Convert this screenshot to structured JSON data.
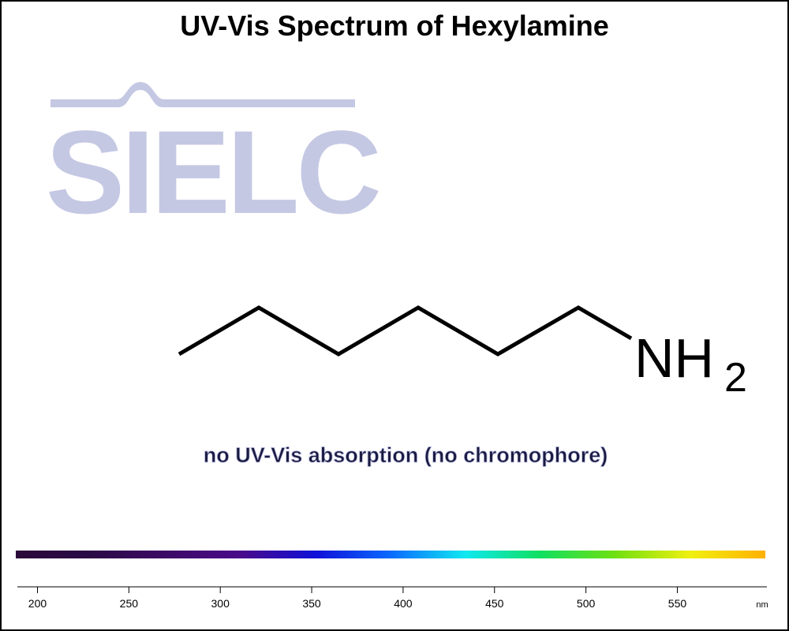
{
  "chart_data": {
    "type": "spectrum",
    "title": "UV-Vis Spectrum of Hexylamine",
    "watermark": "SIELC",
    "structure_label": {
      "main": "NH",
      "subscript": "2"
    },
    "annotation": "no UV-Vis absorption (no chromophore)",
    "xlabel": "nm",
    "xlim": [
      189,
      599
    ],
    "xticks": [
      200,
      250,
      300,
      350,
      400,
      450,
      500,
      550
    ],
    "spectrum_colors": [
      "#2a0a3a",
      "#2a0a45",
      "#3d0a66",
      "#4a0a8a",
      "#1010d8",
      "#0a6aff",
      "#10e8f0",
      "#10e060",
      "#70e010",
      "#f0f010",
      "#ffb000"
    ]
  }
}
